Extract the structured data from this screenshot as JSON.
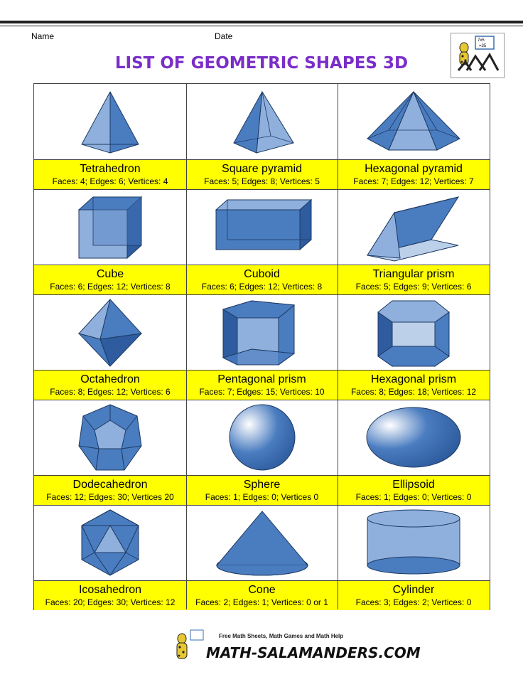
{
  "header": {
    "name_label": "Name",
    "date_label": "Date"
  },
  "title": "LIST OF GEOMETRIC SHAPES 3D",
  "logo": {
    "line1": "7x5",
    "line2": "=35"
  },
  "shapes": [
    {
      "name": "Tetrahedron",
      "stats": "Faces: 4; Edges: 6; Vertices: 4",
      "icon": "tetrahedron-icon"
    },
    {
      "name": "Square pyramid",
      "stats": "Faces: 5; Edges: 8; Vertices: 5",
      "icon": "square-pyramid-icon"
    },
    {
      "name": "Hexagonal pyramid",
      "stats": "Faces: 7; Edges: 12; Vertices: 7",
      "icon": "hexagonal-pyramid-icon"
    },
    {
      "name": "Cube",
      "stats": "Faces: 6; Edges: 12; Vertices: 8",
      "icon": "cube-icon"
    },
    {
      "name": "Cuboid",
      "stats": "Faces: 6; Edges: 12; Vertices: 8",
      "icon": "cuboid-icon"
    },
    {
      "name": "Triangular prism",
      "stats": "Faces: 5; Edges: 9; Vertices: 6",
      "icon": "triangular-prism-icon"
    },
    {
      "name": "Octahedron",
      "stats": "Faces: 8; Edges: 12; Vertices: 6",
      "icon": "octahedron-icon"
    },
    {
      "name": "Pentagonal prism",
      "stats": "Faces: 7; Edges: 15; Vertices: 10",
      "icon": "pentagonal-prism-icon"
    },
    {
      "name": "Hexagonal prism",
      "stats": "Faces: 8; Edges: 18; Vertices: 12",
      "icon": "hexagonal-prism-icon"
    },
    {
      "name": "Dodecahedron",
      "stats": "Faces: 12; Edges: 30; Vertices 20",
      "icon": "dodecahedron-icon"
    },
    {
      "name": "Sphere",
      "stats": "Faces: 1; Edges: 0; Vertices 0",
      "icon": "sphere-icon"
    },
    {
      "name": "Ellipsoid",
      "stats": "Faces: 1; Edges: 0; Vertices: 0",
      "icon": "ellipsoid-icon"
    },
    {
      "name": "Icosahedron",
      "stats": "Faces: 20; Edges: 30; Vertices: 12",
      "icon": "icosahedron-icon"
    },
    {
      "name": "Cone",
      "stats": "Faces: 2; Edges: 1; Vertices: 0 or 1",
      "icon": "cone-icon"
    },
    {
      "name": "Cylinder",
      "stats": "Faces: 3; Edges: 2; Vertices: 0",
      "icon": "cylinder-icon"
    }
  ],
  "footer": {
    "tagline": "Free Math Sheets, Math Games and Math Help",
    "site": "MATH-SALAMANDERS.COM"
  },
  "colors": {
    "title": "#7a2ec8",
    "label_bg": "#ffff00",
    "shape_fill": "#4a7cc0",
    "shape_light": "#8fb0dc",
    "shape_stroke": "#1d3a63"
  }
}
